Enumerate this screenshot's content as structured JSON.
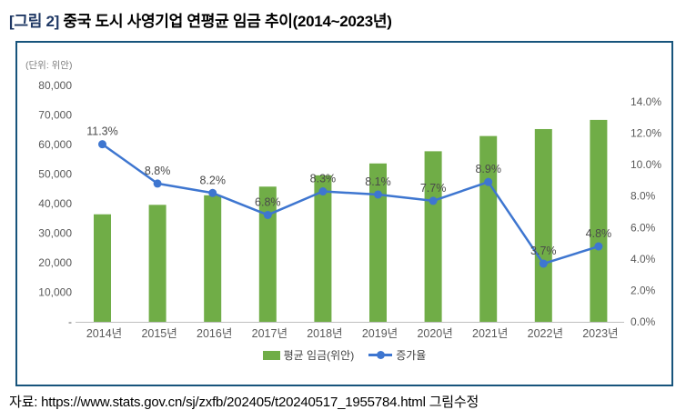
{
  "title": {
    "prefix": "[그림 2]",
    "text": " 중국 도시 사영기업 연평균 임금 추이(2014~2023년)"
  },
  "unit_label": "(단위: 위안)",
  "source": "자료: https://www.stats.gov.cn/sj/zxfb/202405/t20240517_1955784.html 그림수정",
  "colors": {
    "panel_border": "#17547C",
    "title_prefix": "#1F3864",
    "bar": "#70AD47",
    "line": "#3E76D0",
    "axis_line": "#BFBFBF",
    "tick_text": "#595959",
    "data_label_text": "#4A4A4A"
  },
  "chart_data": {
    "type": "bar+line combo",
    "categories": [
      "2014년",
      "2015년",
      "2016년",
      "2017년",
      "2018년",
      "2019년",
      "2020년",
      "2021년",
      "2022년",
      "2023년"
    ],
    "series": [
      {
        "name": "평균 임금(위안)",
        "type": "bar",
        "axis": "left",
        "color": "#70AD47",
        "values": [
          36390,
          39589,
          42833,
          45761,
          49575,
          53604,
          57727,
          62884,
          65237,
          68340
        ]
      },
      {
        "name": "증가율",
        "type": "line",
        "axis": "right",
        "color": "#3E76D0",
        "values": [
          11.3,
          8.8,
          8.2,
          6.8,
          8.3,
          8.1,
          7.7,
          8.9,
          3.7,
          4.8
        ],
        "labels": [
          "11.3%",
          "8.8%",
          "8.2%",
          "6.8%",
          "8.3%",
          "8.1%",
          "7.7%",
          "8.9%",
          "3.7%",
          "4.8%"
        ]
      }
    ],
    "left_axis": {
      "min": 0,
      "max": 80000,
      "ticks": [
        "80,000",
        "70,000",
        "60,000",
        "50,000",
        "40,000",
        "30,000",
        "20,000",
        "10,000",
        "-"
      ]
    },
    "right_axis": {
      "min": 0,
      "max": 14,
      "ticks": [
        "14.0%",
        "12.0%",
        "10.0%",
        "8.0%",
        "6.0%",
        "4.0%",
        "2.0%",
        "0.0%"
      ]
    },
    "grid": "off",
    "legend_position": "bottom-center"
  }
}
